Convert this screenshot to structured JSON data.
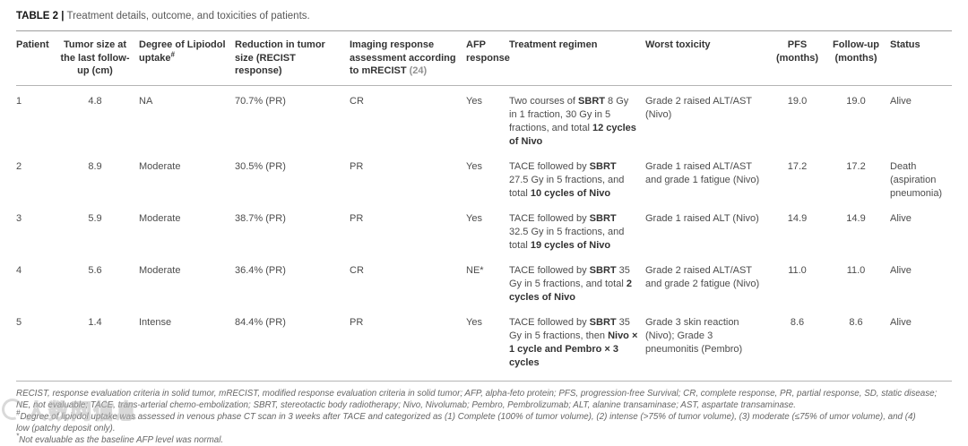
{
  "title": {
    "label": "TABLE 2 |",
    "text": " Treatment details, outcome, and toxicities of patients."
  },
  "table": {
    "headers": [
      {
        "text": "Patient",
        "align": "left"
      },
      {
        "text": "Tumor size at the last follow-up (cm)",
        "align": "center"
      },
      {
        "text": "Degree of Lipiodol uptake",
        "sup": "#",
        "align": "left"
      },
      {
        "text": "Reduction in tumor size (RECIST response)",
        "align": "left"
      },
      {
        "text": "Imaging response assessment according to mRECIST ",
        "cite": "(24)",
        "align": "left"
      },
      {
        "text": "AFP response",
        "align": "left"
      },
      {
        "text": "Treatment regimen",
        "align": "left"
      },
      {
        "text": "Worst toxicity",
        "align": "left"
      },
      {
        "text": "PFS (months)",
        "align": "center"
      },
      {
        "text": "Follow-up (months)",
        "align": "center"
      },
      {
        "text": "Status",
        "align": "left"
      }
    ],
    "rows": [
      {
        "patient": "1",
        "tumor_size": "4.8",
        "lipiodol": "NA",
        "reduction": "70.7% (PR)",
        "mrecist": "CR",
        "afp": "Yes",
        "regimen": [
          {
            "t": "Two courses of ",
            "b": false
          },
          {
            "t": "SBRT",
            "b": true
          },
          {
            "t": " 8 Gy in 1 fraction, 30 Gy in 5 fractions, and total ",
            "b": false
          },
          {
            "t": "12 cycles of Nivo",
            "b": true
          }
        ],
        "toxicity": "Grade 2 raised ALT/AST (Nivo)",
        "pfs": "19.0",
        "followup": "19.0",
        "status": "Alive"
      },
      {
        "patient": "2",
        "tumor_size": "8.9",
        "lipiodol": "Moderate",
        "reduction": "30.5% (PR)",
        "mrecist": "PR",
        "afp": "Yes",
        "regimen": [
          {
            "t": "TACE followed by ",
            "b": false
          },
          {
            "t": "SBRT",
            "b": true
          },
          {
            "t": " 27.5 Gy in 5 fractions, and total ",
            "b": false
          },
          {
            "t": "10 cycles of Nivo",
            "b": true
          }
        ],
        "toxicity": "Grade 1 raised ALT/AST and grade 1 fatigue (Nivo)",
        "pfs": "17.2",
        "followup": "17.2",
        "status": "Death (aspiration pneumonia)"
      },
      {
        "patient": "3",
        "tumor_size": "5.9",
        "lipiodol": "Moderate",
        "reduction": "38.7% (PR)",
        "mrecist": "PR",
        "afp": "Yes",
        "regimen": [
          {
            "t": "TACE followed by ",
            "b": false
          },
          {
            "t": "SBRT",
            "b": true
          },
          {
            "t": " 32.5 Gy in 5 fractions, and total ",
            "b": false
          },
          {
            "t": "19 cycles of Nivo",
            "b": true
          }
        ],
        "toxicity": "Grade 1 raised ALT (Nivo)",
        "pfs": "14.9",
        "followup": "14.9",
        "status": "Alive"
      },
      {
        "patient": "4",
        "tumor_size": "5.6",
        "lipiodol": "Moderate",
        "reduction": "36.4% (PR)",
        "mrecist": "CR",
        "afp": "NE*",
        "regimen": [
          {
            "t": "TACE followed by ",
            "b": false
          },
          {
            "t": "SBRT",
            "b": true
          },
          {
            "t": " 35 Gy in 5 fractions, and total ",
            "b": false
          },
          {
            "t": "2 cycles of Nivo",
            "b": true
          }
        ],
        "toxicity": "Grade 2 raised ALT/AST and grade 2 fatigue (Nivo)",
        "pfs": "11.0",
        "followup": "11.0",
        "status": "Alive"
      },
      {
        "patient": "5",
        "tumor_size": "1.4",
        "lipiodol": "Intense",
        "reduction": "84.4% (PR)",
        "mrecist": "PR",
        "afp": "Yes",
        "regimen": [
          {
            "t": "TACE followed by ",
            "b": false
          },
          {
            "t": "SBRT",
            "b": true
          },
          {
            "t": " 35 Gy in 5 fractions, then ",
            "b": false
          },
          {
            "t": "Nivo × 1 cycle and Pembro × 3 cycles",
            "b": true
          }
        ],
        "toxicity": "Grade 3 skin reaction (Nivo); Grade 3 pneumonitis (Pembro)",
        "pfs": "8.6",
        "followup": "8.6",
        "status": "Alive"
      }
    ]
  },
  "footnotes": [
    {
      "sup": "",
      "text": "RECIST, response evaluation criteria in solid tumor, mRECIST, modified response evaluation criteria in solid tumor; AFP, alpha-feto protein; PFS, progression-free Survival; CR, complete response, PR, partial response, SD, static disease;"
    },
    {
      "sup": "",
      "text": "NE, not evaluable; TACE, trans-arterial chemo-embolization; SBRT, stereotactic body radiotherapy; Nivo, Nivolumab; Pembro, Pembrolizumab; ALT, alanine transaminase; AST, aspartate transaminase."
    },
    {
      "sup": "#",
      "text": "Degree of lipiodol uptake was assessed in venous phase CT scan in 3 weeks after TACE and categorized as (1) Complete (100% of tumor volume), (2) intense (>75% of tumor volume), (3) moderate (≤75% of umor volume), and (4)"
    },
    {
      "sup": "",
      "text": "low (patchy deposit only)."
    },
    {
      "sup": "*",
      "text": "Not evaluable as the baseline AFP level was normal."
    }
  ],
  "watermark": {
    "text": "人数网信息"
  },
  "colors": {
    "rule": "#b5b5b5",
    "body_text": "#4c4c4c",
    "citation": "#919191"
  }
}
